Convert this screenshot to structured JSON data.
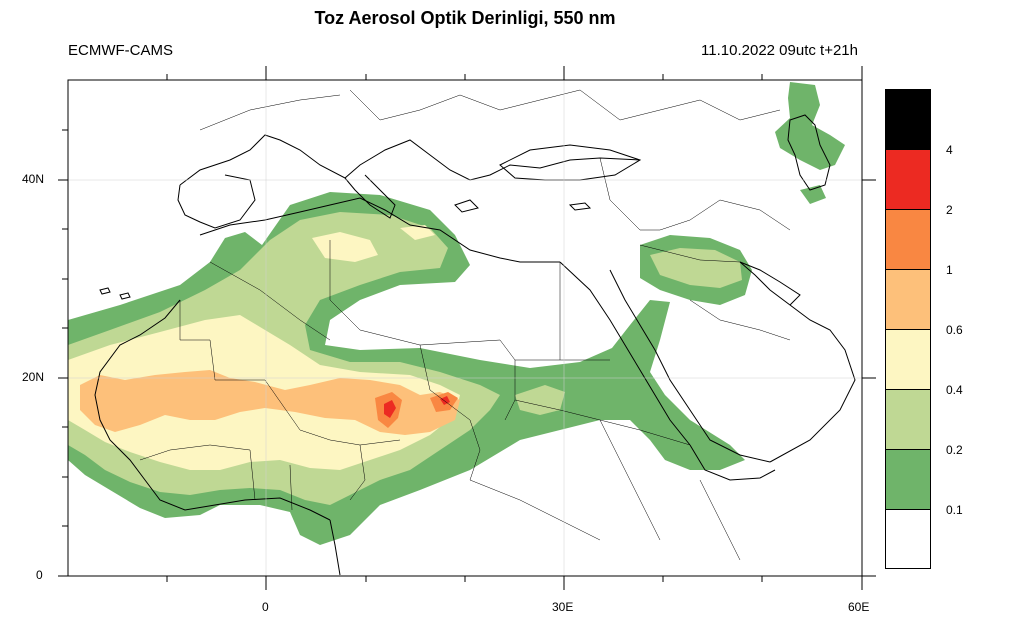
{
  "header": {
    "title": "Toz Aerosol Optik Derinligi, 550 nm",
    "source": "ECMWF-CAMS",
    "valid_time": "11.10.2022 09utc t+21h"
  },
  "map": {
    "lat_labels": [
      "40N",
      "20N",
      "0"
    ],
    "lon_labels": [
      "0",
      "30E",
      "60E"
    ]
  },
  "legend": {
    "levels": [
      "0.1",
      "0.2",
      "0.4",
      "0.6",
      "1",
      "2",
      "4"
    ],
    "colors": [
      "#ffffff",
      "#6fb46a",
      "#bfd894",
      "#fdf6c2",
      "#fdc07a",
      "#f98742",
      "#ec2a22",
      "#000000"
    ]
  }
}
